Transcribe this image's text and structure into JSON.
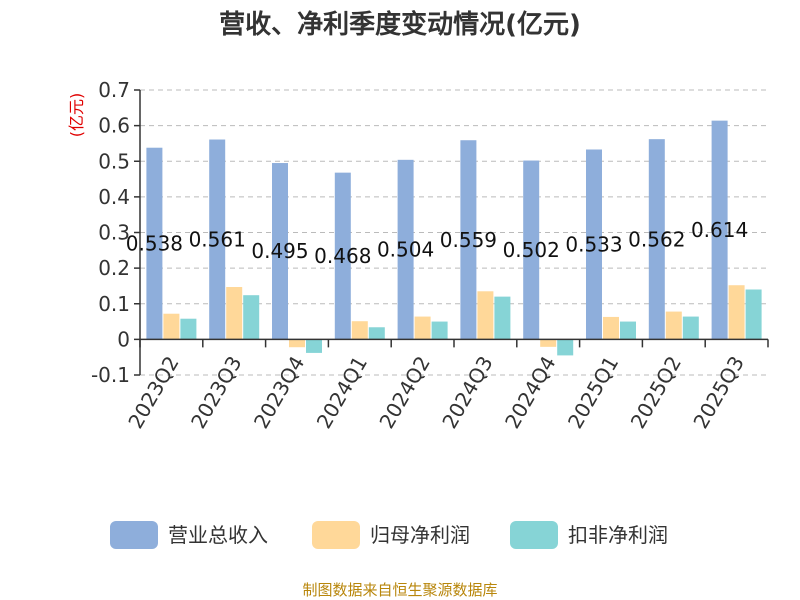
{
  "chart_data": {
    "type": "bar",
    "title": "营收、净利季度变动情况(亿元)",
    "ylabel": "(亿元)",
    "xlabel": "",
    "categories": [
      "2023Q2",
      "2023Q3",
      "2023Q4",
      "2024Q1",
      "2024Q2",
      "2024Q3",
      "2024Q4",
      "2025Q1",
      "2025Q2",
      "2025Q3"
    ],
    "series": [
      {
        "name": "营业总收入",
        "color": "#8eaedb",
        "values": [
          0.538,
          0.561,
          0.495,
          0.468,
          0.504,
          0.559,
          0.502,
          0.533,
          0.562,
          0.614
        ]
      },
      {
        "name": "归母净利润",
        "color": "#ffd899",
        "values": [
          0.072,
          0.147,
          -0.022,
          0.051,
          0.064,
          0.135,
          -0.021,
          0.063,
          0.078,
          0.152
        ]
      },
      {
        "name": "扣非净利润",
        "color": "#86d4d6",
        "values": [
          0.058,
          0.124,
          -0.038,
          0.034,
          0.05,
          0.12,
          -0.045,
          0.05,
          0.064,
          0.14
        ]
      }
    ],
    "data_labels": [
      "0.538",
      "0.561",
      "0.495",
      "0.468",
      "0.504",
      "0.559",
      "0.502",
      "0.533",
      "0.562",
      "0.614"
    ],
    "yticks": [
      "-0.1",
      "0",
      "0.1",
      "0.2",
      "0.3",
      "0.4",
      "0.5",
      "0.6",
      "0.7"
    ],
    "ylim": [
      -0.1,
      0.7
    ],
    "grid": true,
    "legend_position": "bottom"
  },
  "footer": "制图数据来自恒生聚源数据库"
}
